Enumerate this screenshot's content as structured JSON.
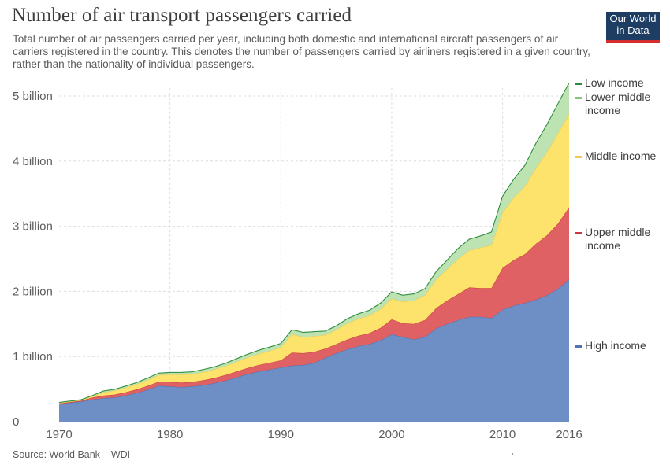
{
  "header": {
    "title": "Number of air transport passengers carried",
    "subtitle": "Total number of air passengers carried per year, including both domestic and international aircraft passengers of air carriers registered in the country. This denotes the number of passengers carried by airliners registered in a given country, rather than the nationality of individual passengers."
  },
  "logo": {
    "line1": "Our World",
    "line2": "in Data"
  },
  "footer": {
    "source": "Source: World Bank – WDI"
  },
  "colors": {
    "high": "#6d8fc6",
    "high_line": "#4f73b4",
    "upper_middle": "#df6163",
    "upper_middle_line": "#c9383c",
    "middle": "#fde36b",
    "middle_line": "#f2c94c",
    "lower_middle": "#bde3b3",
    "lower_middle_line": "#8bc380",
    "low": "#4caf50",
    "low_line": "#2e8b3e",
    "grid": "#dddddd",
    "axis": "#333333"
  },
  "chart_data": {
    "type": "area",
    "stacked": true,
    "title": "Number of air transport passengers carried",
    "xlabel": "",
    "ylabel": "",
    "xlim": [
      1970,
      2016
    ],
    "ylim": [
      0,
      5000000000
    ],
    "yticks": [
      0,
      1000000000,
      2000000000,
      3000000000,
      4000000000,
      5000000000
    ],
    "ytick_labels": [
      "0",
      "1 billion",
      "2 billion",
      "3 billion",
      "4 billion",
      "5 billion"
    ],
    "xticks": [
      1970,
      1980,
      1990,
      2000,
      2010,
      2016
    ],
    "xtick_labels": [
      "1970",
      "1980",
      "1990",
      "2000",
      "2010",
      "2016"
    ],
    "grid": true,
    "legend_position": "right",
    "x": [
      1970,
      1971,
      1972,
      1973,
      1974,
      1975,
      1976,
      1977,
      1978,
      1979,
      1980,
      1981,
      1982,
      1983,
      1984,
      1985,
      1986,
      1987,
      1988,
      1989,
      1990,
      1991,
      1992,
      1993,
      1994,
      1995,
      1996,
      1997,
      1998,
      1999,
      2000,
      2001,
      2002,
      2003,
      2004,
      2005,
      2006,
      2007,
      2008,
      2009,
      2010,
      2011,
      2012,
      2013,
      2014,
      2015,
      2016
    ],
    "series": [
      {
        "name": "High income",
        "key": "high",
        "values": [
          270,
          290,
          310,
          340,
          360,
          370,
          400,
          440,
          490,
          550,
          540,
          530,
          540,
          560,
          590,
          630,
          680,
          730,
          770,
          800,
          830,
          860,
          870,
          900,
          980,
          1050,
          1110,
          1160,
          1190,
          1250,
          1340,
          1300,
          1260,
          1300,
          1430,
          1500,
          1560,
          1610,
          1610,
          1590,
          1720,
          1780,
          1820,
          1870,
          1940,
          2040,
          2180
        ]
      },
      {
        "name": "Upper middle income",
        "key": "upper_middle",
        "values": [
          10,
          11,
          12,
          30,
          40,
          45,
          50,
          55,
          60,
          65,
          70,
          70,
          70,
          75,
          80,
          85,
          90,
          95,
          100,
          105,
          110,
          200,
          180,
          170,
          140,
          140,
          150,
          160,
          170,
          190,
          230,
          210,
          240,
          260,
          310,
          360,
          400,
          450,
          440,
          460,
          640,
          700,
          750,
          860,
          920,
          1000,
          1110
        ]
      },
      {
        "name": "Middle income",
        "key": "middle",
        "values": [
          10,
          10,
          10,
          20,
          50,
          60,
          70,
          80,
          90,
          100,
          110,
          120,
          120,
          125,
          130,
          140,
          150,
          160,
          170,
          180,
          200,
          280,
          250,
          240,
          210,
          220,
          250,
          260,
          270,
          290,
          320,
          330,
          360,
          380,
          440,
          480,
          540,
          570,
          620,
          660,
          850,
          960,
          1040,
          1160,
          1280,
          1390,
          1430
        ]
      },
      {
        "name": "Lower middle income",
        "key": "lower_middle",
        "values": [
          5,
          5,
          5,
          10,
          20,
          20,
          25,
          25,
          30,
          30,
          35,
          35,
          35,
          40,
          40,
          40,
          45,
          50,
          55,
          60,
          60,
          70,
          70,
          70,
          60,
          60,
          70,
          75,
          80,
          90,
          100,
          100,
          100,
          100,
          120,
          140,
          160,
          170,
          180,
          200,
          250,
          280,
          320,
          380,
          420,
          450,
          480
        ]
      },
      {
        "name": "Low income",
        "key": "low",
        "values": [
          1,
          1,
          1,
          1,
          1,
          1,
          1,
          1,
          1,
          1,
          1,
          1,
          1,
          1,
          1,
          1,
          1,
          1,
          1,
          1,
          1,
          1,
          1,
          1,
          1,
          1,
          1,
          1,
          1,
          1,
          2,
          2,
          2,
          2,
          2,
          2,
          2,
          2,
          2,
          2,
          2,
          2,
          2,
          2,
          2,
          3,
          3
        ]
      }
    ],
    "values_unit": "million passengers"
  },
  "legend": [
    {
      "key": "low",
      "lines": [
        "Low income"
      ]
    },
    {
      "key": "lower_middle",
      "lines": [
        "Lower middle",
        "income"
      ]
    },
    {
      "key": "middle",
      "lines": [
        "Middle income"
      ]
    },
    {
      "key": "upper_middle",
      "lines": [
        "Upper middle",
        "income"
      ]
    },
    {
      "key": "high",
      "lines": [
        "High income"
      ]
    }
  ]
}
